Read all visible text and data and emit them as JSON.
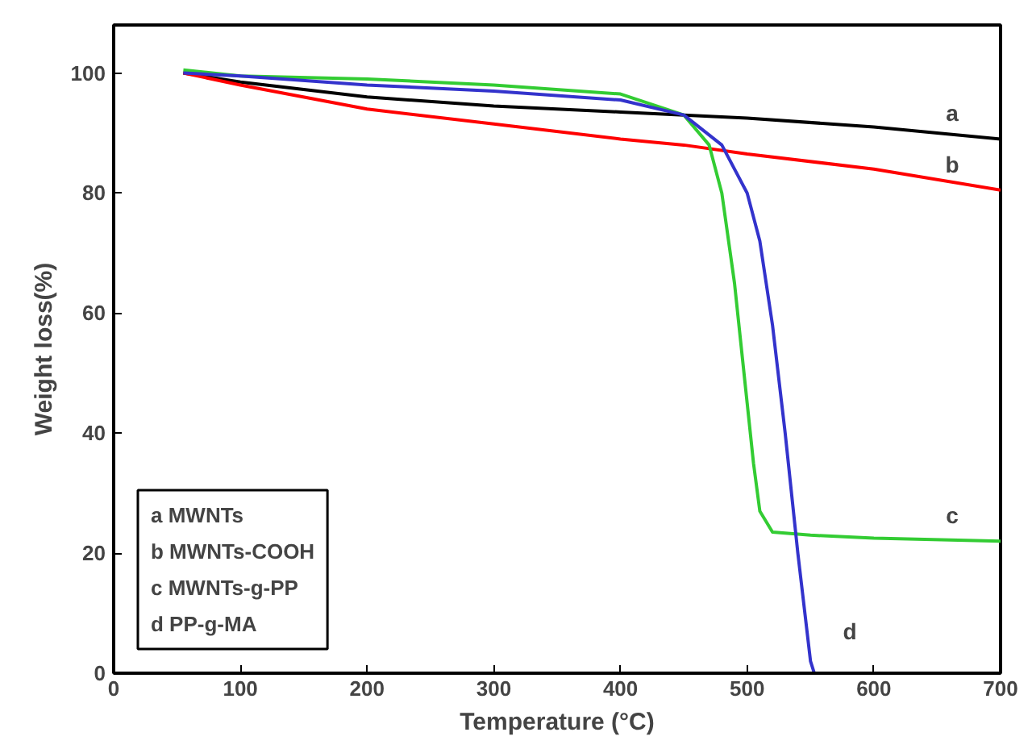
{
  "chart_data": {
    "type": "line",
    "xlabel": "Temperature (°C)",
    "ylabel": "Weight loss(%)",
    "xlim": [
      0,
      700
    ],
    "ylim": [
      0,
      108
    ],
    "xticks": [
      0,
      100,
      200,
      300,
      400,
      500,
      600,
      700
    ],
    "yticks": [
      0,
      20,
      40,
      60,
      80,
      100
    ],
    "grid": false,
    "line_style": "solid",
    "marker": "none",
    "series": [
      {
        "name": "a",
        "color": "#000000",
        "x": [
          55,
          100,
          200,
          300,
          400,
          500,
          600,
          700
        ],
        "values": [
          100,
          98.5,
          96,
          94.5,
          93.5,
          92.5,
          91,
          89
        ]
      },
      {
        "name": "b",
        "color": "#ff0000",
        "x": [
          55,
          100,
          200,
          300,
          400,
          450,
          500,
          600,
          700
        ],
        "values": [
          100,
          98,
          94,
          91.5,
          89,
          88,
          86.5,
          84,
          80.5
        ]
      },
      {
        "name": "c",
        "color": "#33cc33",
        "x": [
          55,
          100,
          200,
          300,
          400,
          450,
          470,
          480,
          490,
          500,
          505,
          510,
          520,
          550,
          600,
          700
        ],
        "values": [
          100.5,
          99.5,
          99,
          98,
          96.5,
          93,
          88,
          80,
          65,
          45,
          35,
          27,
          23.5,
          23,
          22.5,
          22
        ]
      },
      {
        "name": "d",
        "color": "#3333cc",
        "x": [
          55,
          100,
          200,
          300,
          400,
          450,
          480,
          500,
          510,
          520,
          530,
          540,
          550,
          553
        ],
        "values": [
          100,
          99.5,
          98,
          97,
          95.5,
          93,
          88,
          80,
          72,
          58,
          40,
          20,
          2,
          0
        ]
      }
    ],
    "annotations": [
      "a MWNTs",
      "b MWNTs-COOH",
      "c MWNTs-g-PP",
      "d PP-g-MA"
    ]
  }
}
